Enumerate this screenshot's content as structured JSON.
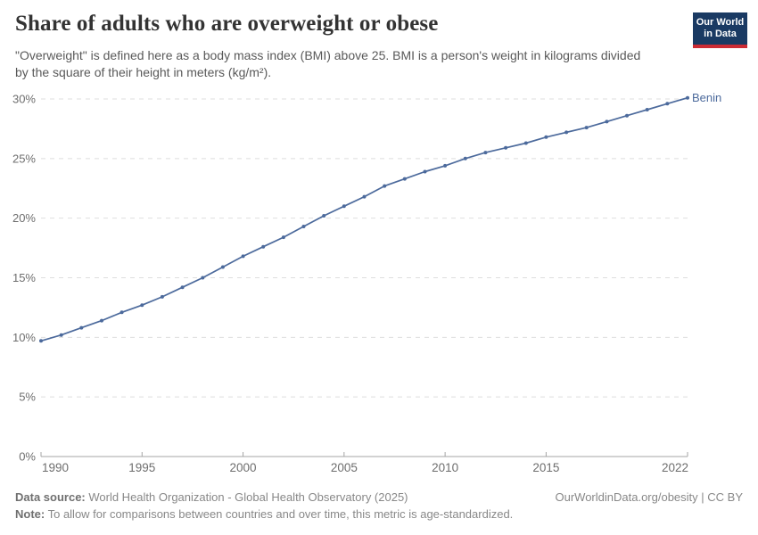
{
  "header": {
    "title": "Share of adults who are overweight or obese",
    "subtitle": "\"Overweight\" is defined here as a body mass index (BMI) above 25. BMI is a person's weight in kilograms divided by the square of their height in meters (kg/m²)."
  },
  "logo": {
    "line1": "Our World",
    "line2": "in Data",
    "bg_color": "#1A3A63",
    "bar_color": "#CC2B34"
  },
  "chart_data": {
    "type": "line",
    "title": "Share of adults who are overweight or obese",
    "x": [
      1990,
      1991,
      1992,
      1993,
      1994,
      1995,
      1996,
      1997,
      1998,
      1999,
      2000,
      2001,
      2002,
      2003,
      2004,
      2005,
      2006,
      2007,
      2008,
      2009,
      2010,
      2011,
      2012,
      2013,
      2014,
      2015,
      2016,
      2017,
      2018,
      2019,
      2020,
      2021,
      2022
    ],
    "series": [
      {
        "name": "Benin",
        "color": "#4C6A9C",
        "values": [
          9.7,
          10.2,
          10.8,
          11.4,
          12.1,
          12.7,
          13.4,
          14.2,
          15.0,
          15.9,
          16.8,
          17.6,
          18.4,
          19.3,
          20.2,
          21.0,
          21.8,
          22.7,
          23.3,
          23.9,
          24.4,
          25.0,
          25.5,
          25.9,
          26.3,
          26.8,
          27.2,
          27.6,
          28.1,
          28.6,
          29.1,
          29.6,
          30.1
        ]
      }
    ],
    "xlim": [
      1990,
      2022
    ],
    "ylim": [
      0,
      30
    ],
    "x_ticks": [
      1990,
      1995,
      2000,
      2005,
      2010,
      2015,
      2022
    ],
    "y_ticks": [
      0,
      5,
      10,
      15,
      20,
      25,
      30
    ],
    "y_tick_suffix": "%",
    "grid": "horizontal-dashed",
    "legend_position": "end-of-line-label",
    "colors": {
      "gridline": "#dedede",
      "axis": "#a5a5a5",
      "tick_label": "#6e6e6e"
    }
  },
  "footer": {
    "data_source_label": "Data source:",
    "data_source_text": " World Health Organization - Global Health Observatory (2025)",
    "note_label": "Note:",
    "note_text": " To allow for comparisons between countries and over time, this metric is age-standardized.",
    "link_text": "OurWorldinData.org/obesity | CC BY"
  }
}
